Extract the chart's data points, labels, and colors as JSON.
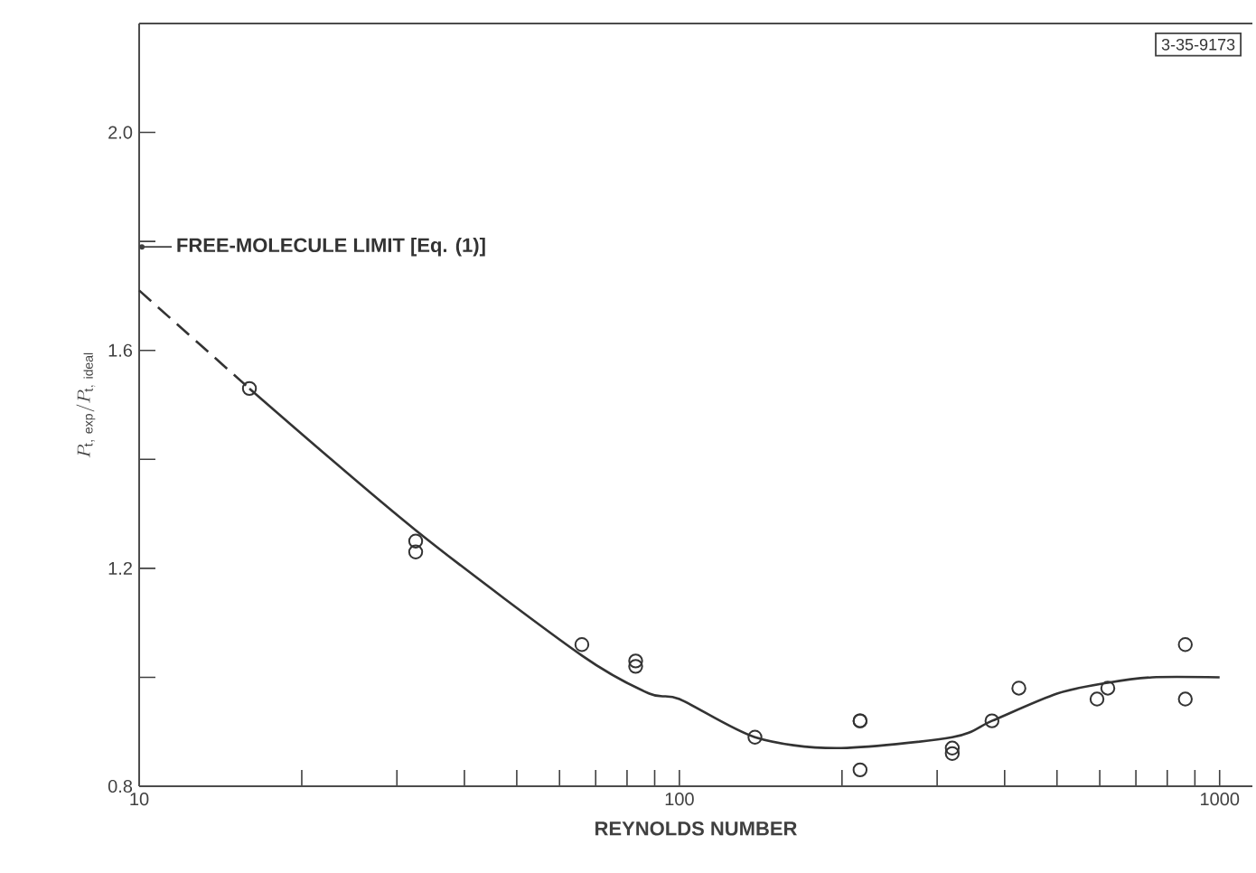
{
  "chart_data": {
    "type": "scatter",
    "xlabel": "REYNOLDS NUMBER",
    "ylabel": "P_{\\mathrm{t,\\ exp}}/P_{\\mathrm{t,\\ ideal}}",
    "log": "x",
    "xlim": [
      10,
      1150
    ],
    "ylim": [
      0.8,
      2.2
    ],
    "xticks": [
      10,
      {
        "value": 20,
        "label": null
      },
      {
        "value": 30,
        "label": null
      },
      {
        "value": 40,
        "label": null
      },
      {
        "value": 50,
        "label": null
      },
      {
        "value": 60,
        "label": null
      },
      {
        "value": 70,
        "label": null
      },
      {
        "value": 80,
        "label": null
      },
      {
        "value": 90,
        "label": null
      },
      100,
      {
        "value": 200,
        "label": null
      },
      {
        "value": 300,
        "label": null
      },
      {
        "value": 400,
        "label": null
      },
      {
        "value": 500,
        "label": null
      },
      {
        "value": 600,
        "label": null
      },
      {
        "value": 700,
        "label": null
      },
      {
        "value": 800,
        "label": null
      },
      {
        "value": 900,
        "label": null
      },
      1000
    ],
    "yticks": [
      0.8,
      {
        "value": 1.0,
        "label": null
      },
      1.2,
      {
        "value": 1.4,
        "label": null
      },
      1.6,
      {
        "value": 1.8,
        "label": null
      },
      {
        "value": 2.0,
        "label": "2.0"
      }
    ],
    "grid": false,
    "series": [
      {
        "marker": "circle",
        "color": "#333333",
        "x": [
          16,
          32.5,
          32.5,
          66,
          83,
          83,
          138,
          216,
          216,
          216,
          320,
          320,
          379,
          425,
          593,
          621,
          864,
          864
        ],
        "values": [
          1.53,
          1.25,
          1.23,
          1.06,
          1.03,
          1.02,
          0.89,
          0.92,
          0.92,
          0.83,
          0.86,
          0.87,
          0.92,
          0.98,
          0.96,
          0.98,
          1.06,
          0.96
        ]
      },
      {
        "type": "line",
        "marker": "none",
        "line_style": "dashed",
        "color": "#333333",
        "x": [
          10,
          16
        ],
        "values": [
          1.71,
          1.53
        ]
      },
      {
        "type": "line",
        "marker": "none",
        "line_style": "solid",
        "color": "#333333",
        "x": [
          16,
          32.5,
          66,
          88,
          100,
          138,
          195,
          320,
          379,
          500,
          621,
          750,
          1000
        ],
        "values": [
          1.53,
          1.27,
          1.04,
          0.97,
          0.96,
          0.89,
          0.87,
          0.89,
          0.92,
          0.97,
          0.99,
          1.0,
          1.0
        ]
      }
    ],
    "annotations": [
      {
        "text": "FREE-MOLECULE LIMIT [Eq. (1)]",
        "x": 10,
        "y": 1.79
      },
      "3-35-9173"
    ]
  }
}
